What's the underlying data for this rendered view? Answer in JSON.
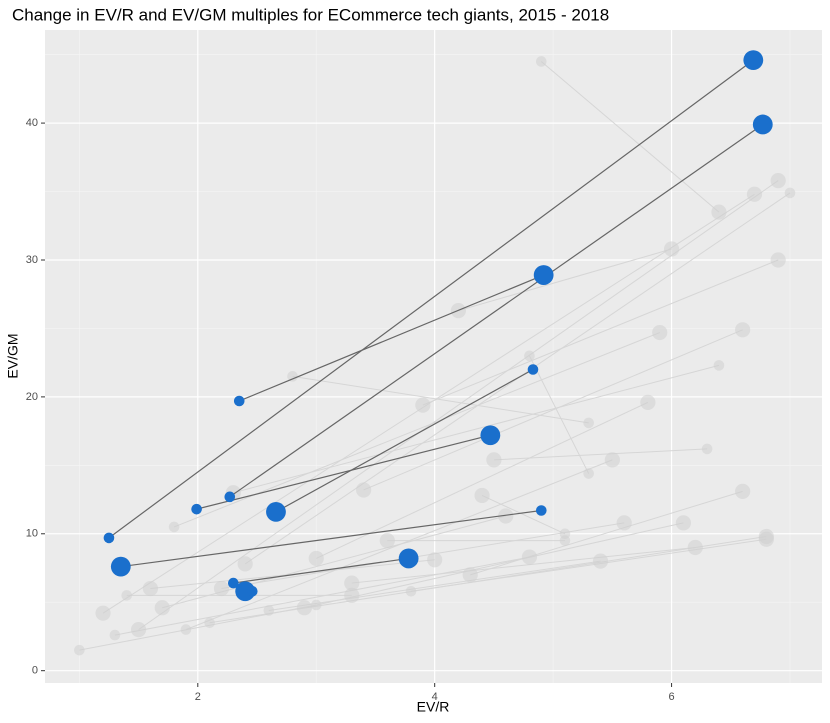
{
  "chart_data": {
    "type": "scatter",
    "title": "Change in EV/R and EV/GM multiples for ECommerce tech giants, 2015 - 2018",
    "x_label": "EV/R",
    "y_label": "EV/GM",
    "xlim": [
      0.71,
      7.27
    ],
    "ylim": [
      -0.9,
      46.8
    ],
    "xticks": [
      2,
      4,
      6
    ],
    "yticks": [
      0,
      10,
      20,
      30,
      40
    ],
    "grid": true,
    "series": [
      {
        "color": "#d0d0d0",
        "x_start": [
          4.9,
          1.0,
          1.2,
          1.5,
          2.8,
          4.2,
          3.9,
          1.8,
          2.3,
          3.4,
          1.9,
          2.4,
          3.0,
          4.5,
          4.8,
          1.3,
          2.1,
          1.6,
          2.9,
          3.3,
          4.3,
          2.6,
          3.6,
          1.7,
          2.2,
          3.8,
          4.4,
          1.4
        ],
        "y_start": [
          44.5,
          1.5,
          4.2,
          3.0,
          21.5,
          26.3,
          19.4,
          10.5,
          13.0,
          13.2,
          3.0,
          7.8,
          8.2,
          15.4,
          23.0,
          2.6,
          3.5,
          6.0,
          4.6,
          6.4,
          7.0,
          4.4,
          9.5,
          4.6,
          6.0,
          5.8,
          12.8,
          5.5
        ],
        "x_end": [
          6.4,
          3.0,
          6.7,
          6.9,
          5.3,
          6.0,
          6.9,
          5.9,
          6.4,
          6.6,
          5.5,
          7.0,
          5.8,
          6.3,
          5.3,
          4.8,
          6.8,
          4.0,
          6.1,
          6.2,
          6.6,
          5.4,
          5.1,
          4.6,
          5.6,
          6.8,
          5.1,
          3.3
        ],
        "y_end": [
          33.5,
          4.8,
          34.8,
          35.8,
          18.1,
          30.8,
          30.0,
          24.7,
          22.3,
          24.9,
          15.4,
          34.9,
          19.6,
          16.2,
          14.4,
          8.3,
          9.8,
          8.1,
          10.8,
          9.0,
          13.1,
          8.0,
          9.5,
          11.3,
          10.8,
          9.6,
          10.0,
          5.5
        ],
        "size_start": [
          1,
          1,
          2,
          2,
          1,
          2,
          2,
          1,
          2,
          2,
          1,
          2,
          2,
          2,
          1,
          1,
          1,
          2,
          2,
          2,
          2,
          1,
          2,
          2,
          2,
          1,
          2,
          1
        ],
        "size_end": [
          2,
          1,
          2,
          2,
          1,
          2,
          2,
          2,
          1,
          2,
          2,
          1,
          2,
          1,
          1,
          2,
          2,
          2,
          2,
          2,
          2,
          2,
          1,
          2,
          2,
          2,
          1,
          2
        ]
      },
      {
        "color": "#1a6fcc",
        "x_start": [
          1.25,
          2.35,
          2.27,
          2.66,
          1.99,
          1.35,
          2.3,
          2.4
        ],
        "y_start": [
          9.7,
          19.7,
          12.7,
          11.6,
          11.8,
          7.6,
          6.4,
          5.8
        ],
        "x_end": [
          6.69,
          4.92,
          6.77,
          4.83,
          4.47,
          4.9,
          3.78,
          2.46
        ],
        "y_end": [
          44.6,
          28.9,
          39.9,
          22.0,
          17.2,
          11.7,
          8.2,
          5.8
        ],
        "size_start": [
          1,
          1,
          1,
          3,
          1,
          3,
          1,
          3
        ],
        "size_end": [
          3,
          3,
          3,
          1,
          3,
          1,
          3,
          1
        ]
      }
    ]
  }
}
